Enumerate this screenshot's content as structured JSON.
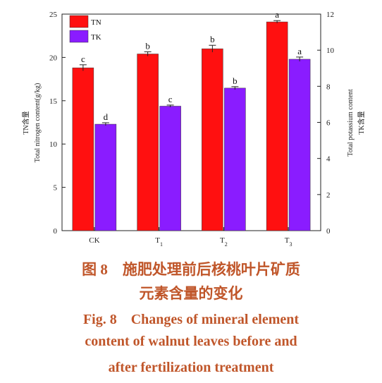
{
  "chart_data": {
    "type": "bar",
    "categories": [
      "CK",
      "T1",
      "T2",
      "T3"
    ],
    "series": [
      {
        "name": "TN",
        "axis": "left",
        "color": "#ff1010",
        "values": [
          18.8,
          20.4,
          21.0,
          24.1
        ],
        "errors": [
          0.35,
          0.25,
          0.4,
          0.15
        ],
        "significance": [
          "c",
          "b",
          "b",
          "a"
        ]
      },
      {
        "name": "TK",
        "axis": "right",
        "color": "#8a1cff",
        "values": [
          5.9,
          6.9,
          7.9,
          9.5
        ],
        "errors": [
          0.08,
          0.06,
          0.08,
          0.12
        ],
        "significance": [
          "d",
          "c",
          "b",
          "a"
        ]
      }
    ],
    "ylabel_left": [
      "TN含量",
      "Total nitrogen content(g/kg)"
    ],
    "ylabel_right": [
      "Total potassium content",
      "TK含量"
    ],
    "ylim_left": [
      0,
      25
    ],
    "ylim_right": [
      0,
      12
    ],
    "yticks_left": [
      "0",
      "5",
      "10",
      "15",
      "20",
      "25"
    ],
    "yticks_right": [
      "0",
      "2",
      "4",
      "6",
      "8",
      "10",
      "12"
    ],
    "legend_position": "top-left",
    "grid": false
  },
  "caption": {
    "zh_line1": "图 8　施肥处理前后核桃叶片矿质",
    "zh_line2": "元素含量的变化",
    "en_line1": "Fig. 8　Changes of mineral element",
    "en_line2": "content of walnut leaves before and",
    "en_line3": "after fertilization treatment"
  }
}
